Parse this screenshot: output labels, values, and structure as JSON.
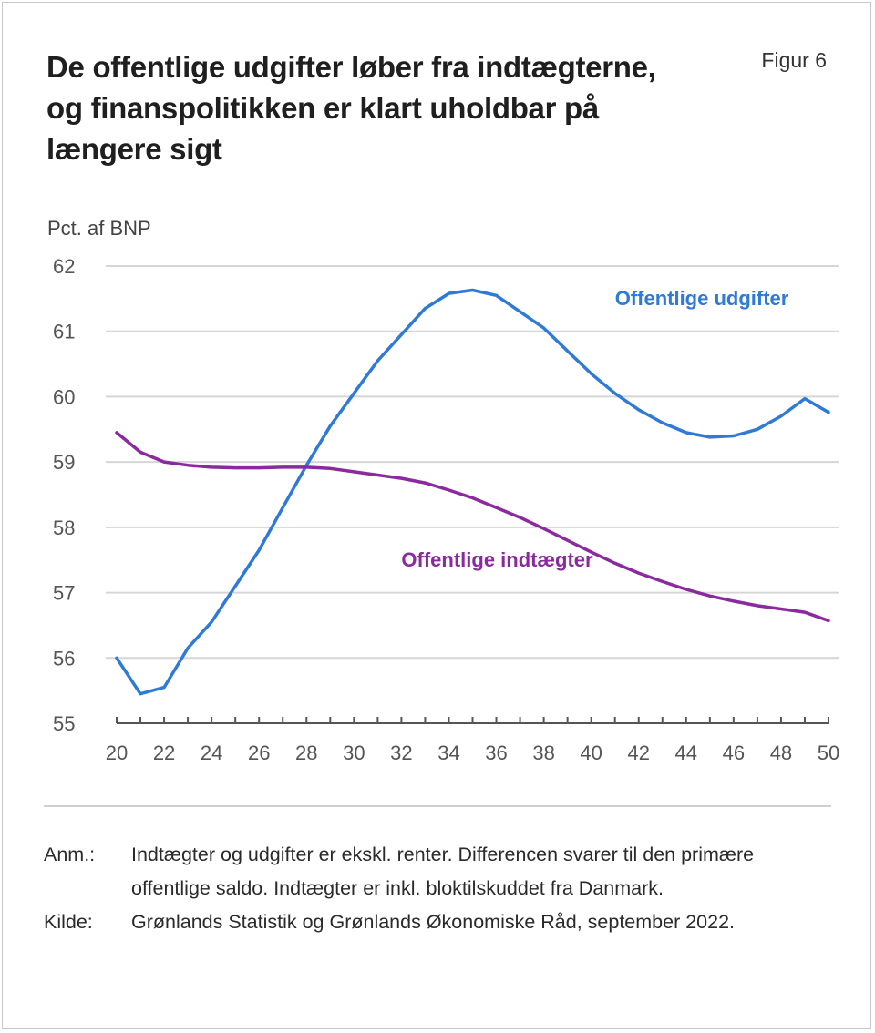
{
  "header": {
    "title": "De offentlige udgifter løber fra indtægterne, og finanspolitikken er klart uholdbar på længere sigt",
    "figure_label": "Figur 6"
  },
  "chart_data": {
    "type": "line",
    "title": "De offentlige udgifter løber fra indtægterne, og finanspolitikken er klart uholdbar på længere sigt",
    "ylabel": "Pct. af BNP",
    "xlabel": "",
    "ylim": [
      55,
      62
    ],
    "xlim": [
      20,
      50
    ],
    "yticks": [
      "55",
      "56",
      "57",
      "58",
      "59",
      "60",
      "61",
      "62"
    ],
    "xticks": [
      "20",
      "22",
      "24",
      "26",
      "28",
      "30",
      "32",
      "34",
      "36",
      "38",
      "40",
      "42",
      "44",
      "46",
      "48",
      "50"
    ],
    "grid": true,
    "x": [
      20,
      21,
      22,
      23,
      24,
      25,
      26,
      27,
      28,
      29,
      30,
      31,
      32,
      33,
      34,
      35,
      36,
      37,
      38,
      39,
      40,
      41,
      42,
      43,
      44,
      45,
      46,
      47,
      48,
      49,
      50
    ],
    "series": [
      {
        "name": "Offentlige udgifter",
        "color": "#2f7ad6",
        "values": [
          56.0,
          55.45,
          55.55,
          56.15,
          56.55,
          57.1,
          57.65,
          58.3,
          58.95,
          59.55,
          60.05,
          60.55,
          60.95,
          61.35,
          61.58,
          61.63,
          61.55,
          61.3,
          61.05,
          60.7,
          60.35,
          60.05,
          59.8,
          59.6,
          59.45,
          59.38,
          59.4,
          59.5,
          59.7,
          59.97,
          59.76
        ]
      },
      {
        "name": "Offentlige indtægter",
        "color": "#8a2a9e",
        "values": [
          59.45,
          59.15,
          59.0,
          58.95,
          58.92,
          58.91,
          58.91,
          58.92,
          58.92,
          58.9,
          58.85,
          58.8,
          58.75,
          58.68,
          58.57,
          58.45,
          58.3,
          58.15,
          57.98,
          57.8,
          57.62,
          57.45,
          57.3,
          57.17,
          57.05,
          56.95,
          56.87,
          56.8,
          56.75,
          56.7,
          56.57
        ]
      }
    ],
    "annotations": [
      {
        "text": "Offentlige udgifter",
        "series": "Offentlige udgifter",
        "x": 41,
        "y": 61.4
      },
      {
        "text": "Offentlige indtægter",
        "series": "Offentlige indtægter",
        "x": 32,
        "y": 57.4
      }
    ],
    "legend": "inline-labels"
  },
  "notes": {
    "anm_label": "Anm.:",
    "anm_text": "Indtægter og udgifter er ekskl. renter. Differencen svarer til den primære offentlige saldo. Indtægter er inkl. bloktilskuddet fra Danmark.",
    "kilde_label": "Kilde:",
    "kilde_text": "Grønlands Statistik og Grønlands Økonomiske Råd, september 2022."
  }
}
